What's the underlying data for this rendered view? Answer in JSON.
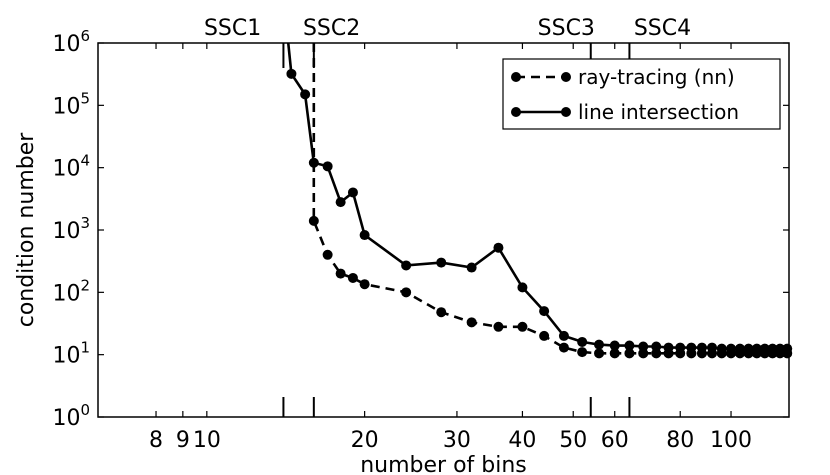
{
  "chart_data": {
    "type": "line",
    "xscale": "log",
    "yscale": "log",
    "xlabel": "number of bins",
    "ylabel": "condition number",
    "xlim": [
      6.2,
      129
    ],
    "ylim": [
      1,
      1000000
    ],
    "x_ticks": [
      {
        "value": 8,
        "label": "8"
      },
      {
        "value": 9,
        "label": "9"
      },
      {
        "value": 10,
        "label": "10"
      },
      {
        "value": 20,
        "label": "20"
      },
      {
        "value": 30,
        "label": "30"
      },
      {
        "value": 40,
        "label": "40"
      },
      {
        "value": 50,
        "label": "50"
      },
      {
        "value": 60,
        "label": "60"
      },
      {
        "value": 80,
        "label": "80"
      },
      {
        "value": 100,
        "label": "100"
      }
    ],
    "y_ticks": [
      {
        "value": 1,
        "base": "10",
        "exp": "0"
      },
      {
        "value": 10,
        "base": "10",
        "exp": "1"
      },
      {
        "value": 100,
        "base": "10",
        "exp": "2"
      },
      {
        "value": 1000,
        "base": "10",
        "exp": "3"
      },
      {
        "value": 10000,
        "base": "10",
        "exp": "4"
      },
      {
        "value": 100000,
        "base": "10",
        "exp": "5"
      },
      {
        "value": 1000000,
        "base": "10",
        "exp": "6"
      }
    ],
    "vertical_markers": [
      {
        "label": "SSC1",
        "x": 14,
        "label_x": 11.2
      },
      {
        "label": "SSC2",
        "x": 16,
        "label_x": 17.3
      },
      {
        "label": "SSC3",
        "x": 54,
        "label_x": 48.5
      },
      {
        "label": "SSC4",
        "x": 64,
        "label_x": 74
      }
    ],
    "legend": {
      "position": "top-right"
    },
    "series": [
      {
        "name": "ray-tracing (nn)",
        "style": "dashed",
        "color": "#000000",
        "x": [
          16,
          17,
          18,
          19,
          20,
          24,
          28,
          32,
          36,
          40,
          44,
          48,
          52,
          56,
          60,
          64,
          68,
          72,
          76,
          80,
          84,
          88,
          92,
          96,
          100,
          104,
          108,
          112,
          116,
          120,
          124,
          128
        ],
        "y": [
          1400,
          400,
          200,
          170,
          135,
          100,
          48,
          33,
          28,
          28,
          20,
          13,
          11,
          10.5,
          10.5,
          10.5,
          10.5,
          10.5,
          10.5,
          10.5,
          10.5,
          10.5,
          10.5,
          10.5,
          10.5,
          10.5,
          10.5,
          10.5,
          10.5,
          10.5,
          10.5,
          10.5
        ],
        "offscale_start_x": 16
      },
      {
        "name": "line intersection",
        "style": "solid",
        "color": "#000000",
        "x": [
          14.5,
          15.4,
          16,
          17,
          18,
          19,
          20,
          24,
          28,
          32,
          36,
          40,
          44,
          48,
          52,
          56,
          60,
          64,
          68,
          72,
          76,
          80,
          84,
          88,
          92,
          96,
          100,
          104,
          108,
          112,
          116,
          120,
          124,
          128
        ],
        "y": [
          320000,
          150000,
          12000,
          10500,
          2800,
          4000,
          830,
          270,
          300,
          250,
          520,
          120,
          50,
          20,
          16,
          14.5,
          14,
          14,
          13.5,
          13.5,
          13,
          13,
          13,
          13,
          13,
          12.5,
          12.5,
          12.5,
          12.5,
          12.5,
          12.5,
          12.5,
          12.5,
          12.5
        ],
        "offscale_start_x": 14.3
      }
    ]
  }
}
